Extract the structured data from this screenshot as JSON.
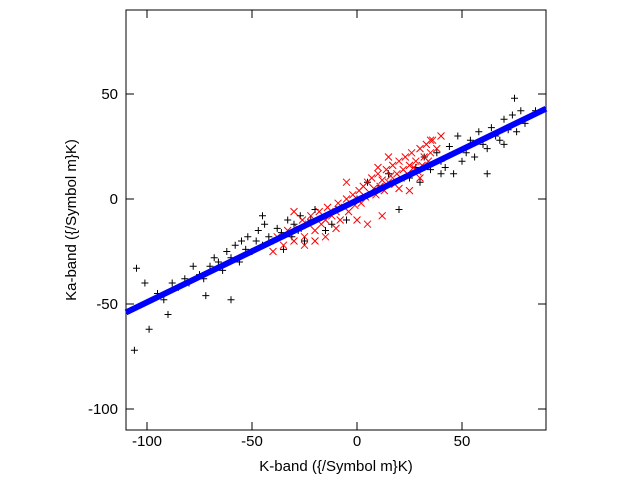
{
  "chart_data": {
    "type": "scatter",
    "xlabel": "K-band ({/Symbol m}K)",
    "ylabel": "Ka-band ({/Symbol m}K)",
    "xlim": [
      -110,
      90
    ],
    "ylim": [
      -110,
      90
    ],
    "xticks": [
      -100,
      -50,
      0,
      50
    ],
    "yticks": [
      -100,
      -50,
      0,
      50
    ],
    "xtick_labels": [
      "-100",
      "-50",
      "0",
      "50"
    ],
    "ytick_labels": [
      "-100",
      "-50",
      "0",
      "50"
    ],
    "grid": false,
    "legend": "none",
    "series": [
      {
        "marker": "plus",
        "color": "#000000",
        "x": [
          -105,
          -101,
          -95,
          -92,
          -88,
          -85,
          -82,
          -80,
          -78,
          -75,
          -73,
          -70,
          -68,
          -66,
          -64,
          -62,
          -60,
          -58,
          -56,
          -55,
          -53,
          -52,
          -50,
          -48,
          -47,
          -45,
          -44,
          -42,
          -40,
          -38,
          -36,
          -35,
          -33,
          -31,
          -30,
          -28,
          -27,
          -25,
          -22,
          -20,
          -15,
          -10,
          -5,
          0,
          5,
          10,
          15,
          20,
          25,
          28,
          30,
          32,
          35,
          38,
          40,
          42,
          44,
          46,
          48,
          50,
          52,
          54,
          56,
          58,
          60,
          62,
          64,
          66,
          68,
          70,
          72,
          74,
          76,
          78,
          80,
          -106,
          -99,
          -90,
          -72,
          -60,
          -45,
          -12,
          40,
          62,
          70,
          75,
          85
        ],
        "y": [
          -33,
          -40,
          -45,
          -48,
          -40,
          -42,
          -38,
          -40,
          -32,
          -36,
          -38,
          -32,
          -28,
          -30,
          -34,
          -25,
          -28,
          -22,
          -30,
          -20,
          -24,
          -18,
          -25,
          -20,
          -15,
          -22,
          -12,
          -18,
          -20,
          -14,
          -16,
          -24,
          -10,
          -18,
          -12,
          -15,
          -8,
          -20,
          -10,
          -5,
          -15,
          -5,
          -10,
          0,
          8,
          5,
          12,
          -5,
          10,
          15,
          8,
          20,
          14,
          22,
          18,
          15,
          25,
          12,
          30,
          18,
          22,
          28,
          20,
          32,
          26,
          24,
          34,
          30,
          28,
          38,
          33,
          40,
          32,
          42,
          36,
          -72,
          -62,
          -55,
          -46,
          -48,
          -8,
          -12,
          12,
          12,
          26,
          48,
          42
        ]
      },
      {
        "marker": "cross",
        "color": "#ff0000",
        "x": [
          -40,
          -38,
          -35,
          -33,
          -30,
          -28,
          -26,
          -25,
          -23,
          -22,
          -20,
          -18,
          -17,
          -15,
          -14,
          -12,
          -10,
          -9,
          -8,
          -6,
          -5,
          -4,
          -2,
          -1,
          0,
          1,
          2,
          3,
          4,
          5,
          6,
          7,
          8,
          9,
          10,
          11,
          12,
          13,
          14,
          15,
          16,
          17,
          18,
          19,
          20,
          21,
          22,
          23,
          24,
          25,
          26,
          27,
          28,
          29,
          30,
          31,
          32,
          33,
          34,
          35,
          36,
          38,
          40,
          -30,
          -20,
          -10,
          0,
          10,
          20,
          30,
          -25,
          -15,
          -5,
          5,
          15,
          25,
          35,
          12
        ],
        "y": [
          -25,
          -18,
          -22,
          -15,
          -20,
          -14,
          -10,
          -18,
          -12,
          -8,
          -15,
          -6,
          -12,
          -10,
          -4,
          -8,
          -6,
          -2,
          -10,
          -4,
          0,
          -6,
          2,
          -3,
          0,
          4,
          -2,
          6,
          1,
          8,
          3,
          10,
          5,
          2,
          12,
          6,
          9,
          4,
          14,
          8,
          11,
          16,
          7,
          12,
          18,
          10,
          14,
          20,
          12,
          16,
          22,
          15,
          18,
          13,
          24,
          16,
          20,
          26,
          18,
          22,
          28,
          24,
          30,
          -6,
          -20,
          -14,
          -10,
          15,
          5,
          10,
          -22,
          -18,
          8,
          -12,
          20,
          4,
          28,
          -8
        ]
      },
      {
        "marker": "line",
        "color": "#0000ff",
        "x": [
          -110,
          90
        ],
        "y": [
          -54,
          43
        ]
      }
    ]
  }
}
